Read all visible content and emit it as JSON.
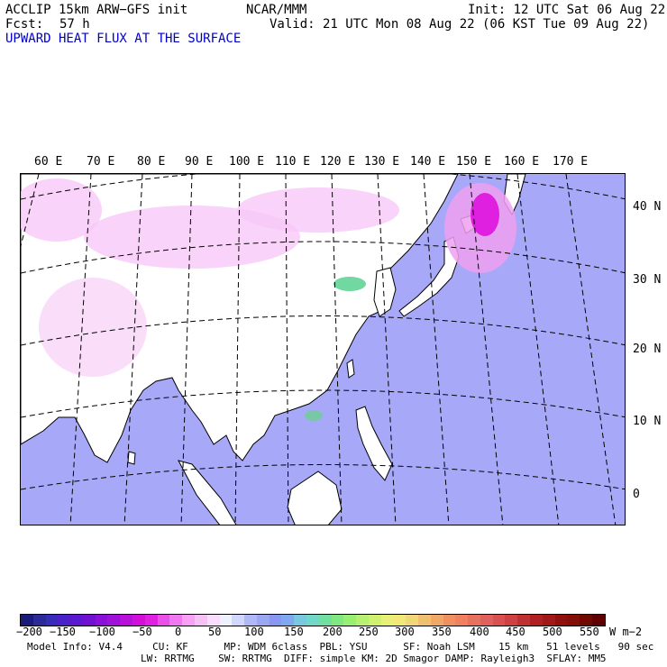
{
  "header": {
    "model": "ACCLIP 15km ARW−GFS init",
    "center": "NCAR/MMM",
    "init": "Init: 12 UTC Sat 06 Aug 22",
    "fcst_label": "Fcst:",
    "fcst_value": "57 h",
    "valid": "Valid: 21 UTC Mon 08 Aug 22 (06 KST Tue 09 Aug 22)",
    "field_title": "UPWARD HEAT FLUX AT THE SURFACE"
  },
  "map": {
    "lon_labels": [
      "60 E",
      "70 E",
      "80 E",
      "90 E",
      "100 E",
      "110 E",
      "120 E",
      "130 E",
      "140 E",
      "150 E",
      "160 E",
      "170 E"
    ],
    "lat_labels": [
      "40 N",
      "30 N",
      "20 N",
      "10 N",
      "0"
    ],
    "colors": {
      "ocean": "#a8a8f8",
      "land": "#ffffff",
      "positive_flux": "#f7c8f7",
      "high_flux": "#e020e0",
      "coastline": "#000000",
      "grid": "#000000"
    }
  },
  "colorbar": {
    "tick_labels": [
      "−200",
      "−150",
      "−100",
      "−50",
      "0",
      "50",
      "100",
      "150",
      "200",
      "250",
      "300",
      "350",
      "400",
      "450",
      "500",
      "550"
    ],
    "units": "W m−2",
    "colors": [
      "#1a1a7a",
      "#2a2a9a",
      "#3a2ab8",
      "#4a20c8",
      "#5a18d0",
      "#7010d0",
      "#8a10d8",
      "#a010d8",
      "#b810d8",
      "#d010d8",
      "#e020e0",
      "#e850e8",
      "#f078f0",
      "#f8a0f8",
      "#f8c0f8",
      "#fcdcfc",
      "#f0f0ff",
      "#d0d8ff",
      "#b0b8f8",
      "#9aa8f4",
      "#8898f0",
      "#80a8f0",
      "#78c8e0",
      "#70d8c8",
      "#70e0a0",
      "#80e880",
      "#98f070",
      "#b8f070",
      "#d0f070",
      "#e8f078",
      "#f0e878",
      "#f0d878",
      "#f0c070",
      "#f0a868",
      "#f09060",
      "#f08060",
      "#e87060",
      "#e06060",
      "#d85050",
      "#d04040",
      "#c03030",
      "#b02020",
      "#a01818",
      "#901010",
      "#801008",
      "#700800",
      "#600000"
    ]
  },
  "footer": {
    "line1": "Model Info: V4.4     CU: KF      MP: WDM 6class  PBL: YSU      SF: Noah LSM    15 km   51 levels   90 sec",
    "line2": "LW: RRTMG    SW: RRTMG  DIFF: simple KM: 2D Smagor DAMP: Rayleigh3  SFLAY: MM5"
  }
}
